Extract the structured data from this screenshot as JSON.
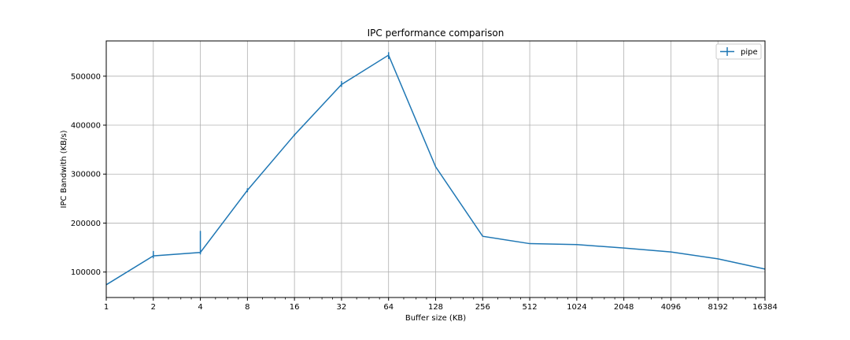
{
  "colors": {
    "series": "#1f77b4",
    "grid": "#b0b0b0",
    "axis": "#000000",
    "background": "#ffffff"
  },
  "chart_data": {
    "type": "line",
    "title": "IPC performance comparison",
    "xlabel": "Buffer size (KB)",
    "ylabel": "IPC Bandwith (KB/s)",
    "x_scale": "log2",
    "xlim": [
      1,
      16384
    ],
    "ylim": [
      48000,
      572000
    ],
    "grid": true,
    "legend_placement": "top-right",
    "x_ticks": [
      {
        "value": 1,
        "label": "1"
      },
      {
        "value": 2,
        "label": "2"
      },
      {
        "value": 4,
        "label": "4"
      },
      {
        "value": 8,
        "label": "8"
      },
      {
        "value": 16,
        "label": "16"
      },
      {
        "value": 32,
        "label": "32"
      },
      {
        "value": 64,
        "label": "64"
      },
      {
        "value": 128,
        "label": "128"
      },
      {
        "value": 256,
        "label": "256"
      },
      {
        "value": 512,
        "label": "512"
      },
      {
        "value": 1024,
        "label": "1024"
      },
      {
        "value": 2048,
        "label": "2048"
      },
      {
        "value": 4096,
        "label": "4096"
      },
      {
        "value": 8192,
        "label": "8192"
      },
      {
        "value": 16384,
        "label": "16384"
      }
    ],
    "y_ticks": [
      {
        "value": 100000,
        "label": "100000"
      },
      {
        "value": 200000,
        "label": "200000"
      },
      {
        "value": 300000,
        "label": "300000"
      },
      {
        "value": 400000,
        "label": "400000"
      },
      {
        "value": 500000,
        "label": "500000"
      }
    ],
    "series": [
      {
        "name": "pipe",
        "x": [
          1,
          2,
          4,
          8,
          16,
          32,
          64,
          128,
          256,
          512,
          1024,
          2048,
          4096,
          8192,
          16384
        ],
        "y": [
          74000,
          133000,
          140000,
          267000,
          380000,
          483000,
          543000,
          315000,
          173000,
          158000,
          156000,
          149000,
          141000,
          127000,
          106000
        ],
        "err_low": [
          74000,
          128000,
          136000,
          263000,
          378000,
          478000,
          535000,
          315000,
          173000,
          158000,
          156000,
          149000,
          141000,
          127000,
          106000
        ],
        "err_high": [
          74000,
          143000,
          184000,
          271000,
          382000,
          490000,
          549000,
          315000,
          173000,
          158000,
          156000,
          149000,
          141000,
          127000,
          106000
        ]
      }
    ]
  }
}
